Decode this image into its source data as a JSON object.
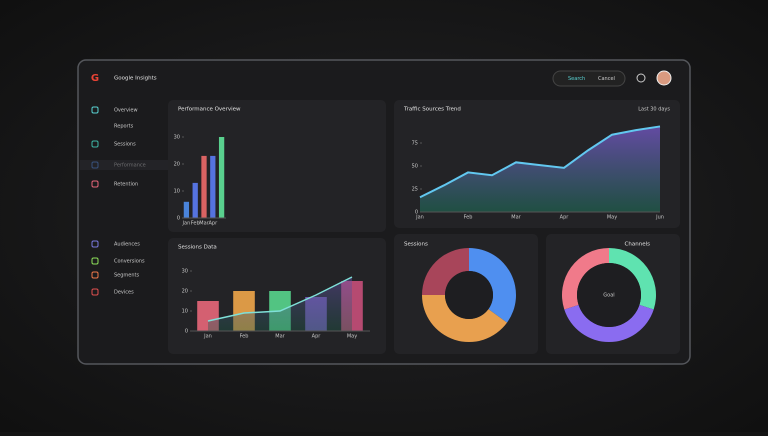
{
  "header": {
    "title": "Google Insights",
    "search": "Search",
    "action": "Cancel"
  },
  "sidebar": [
    "Overview",
    "Reports",
    "Sessions",
    "Performance",
    "Retention",
    "Audiences",
    "Conversions",
    "Segments",
    "Devices"
  ],
  "chart_data": [
    {
      "type": "bar",
      "title": "Performance Overview",
      "categories": [
        "Jan",
        "Feb",
        "Mar",
        "Apr",
        null
      ],
      "values": [
        6,
        13,
        23,
        23,
        30
      ],
      "colors": [
        "#4f8ff0",
        "#5b7cf5",
        "#ee6a6a",
        "#5b7cf5",
        "#5fe39a"
      ],
      "ylim": [
        0,
        40
      ],
      "yticks": [
        0,
        10,
        20,
        30
      ]
    },
    {
      "type": "area",
      "title": "Traffic Sources Trend",
      "subtitle": "Last 30 days",
      "categories": [
        "Jan",
        null,
        "Feb",
        null,
        "Mar",
        null,
        "Apr",
        null,
        "May",
        null,
        "Jun"
      ],
      "values": [
        16,
        29,
        43,
        40,
        54,
        51,
        48,
        67,
        84,
        89,
        93
      ],
      "color": "#62c8f0",
      "ylim": [
        0,
        100
      ],
      "yticks": [
        0,
        25,
        50,
        75
      ]
    },
    {
      "type": "combo",
      "title": "Sessions Data",
      "categories": [
        "Jan",
        "Feb",
        "Mar",
        "Apr",
        "May"
      ],
      "values": [
        15,
        20,
        20,
        17,
        25
      ],
      "colors": [
        "#e8677a",
        "#f0a64a",
        "#58d68d",
        "#7a5cc0",
        "#c64f7a"
      ],
      "line": [
        5,
        9,
        10,
        18,
        27
      ],
      "ylim": [
        0,
        30
      ],
      "yticks": [
        0,
        10,
        20,
        30
      ]
    },
    {
      "type": "donut",
      "title": "Sessions",
      "values": [
        35,
        40,
        25
      ],
      "colors": [
        "#4f8ff0",
        "#e8a04f",
        "#a8455a"
      ]
    },
    {
      "type": "donut",
      "title": "Channels",
      "center": "Goal",
      "values": [
        30,
        40,
        30
      ],
      "colors": [
        "#5fe3b0",
        "#8a6cf0",
        "#f07a8a"
      ]
    }
  ]
}
